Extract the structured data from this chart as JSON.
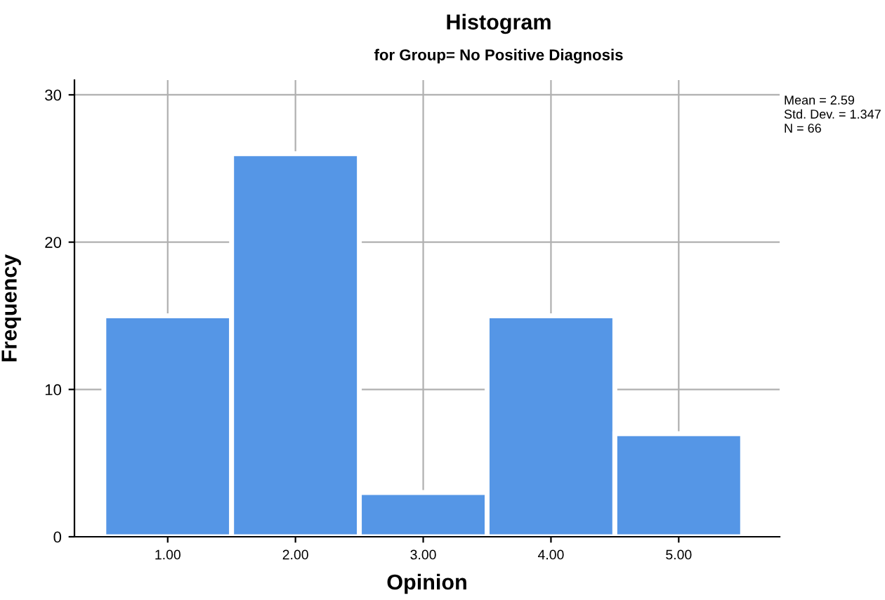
{
  "chart_data": {
    "type": "histogram",
    "title": "Histogram",
    "subtitle": "for Group= No Positive Diagnosis",
    "xlabel": "Opinion",
    "ylabel": "Frequency",
    "bins": [
      0.5,
      1.5,
      2.5,
      3.5,
      4.5,
      5.5
    ],
    "values": [
      15,
      26,
      3,
      15,
      7
    ],
    "color": "#5596e6",
    "xlim": [
      0.27,
      5.79
    ],
    "xticks": [
      {
        "value": 1,
        "label": "1.00"
      },
      {
        "value": 2,
        "label": "2.00"
      },
      {
        "value": 3,
        "label": "3.00"
      },
      {
        "value": 4,
        "label": "4.00"
      },
      {
        "value": 5,
        "label": "5.00"
      }
    ],
    "ylim": [
      0,
      31
    ],
    "yticks": [
      0,
      10,
      20,
      30
    ],
    "grid": true,
    "annotations": [
      "Mean = 2.59",
      "Std. Dev. = 1.347",
      "N = 66"
    ]
  }
}
